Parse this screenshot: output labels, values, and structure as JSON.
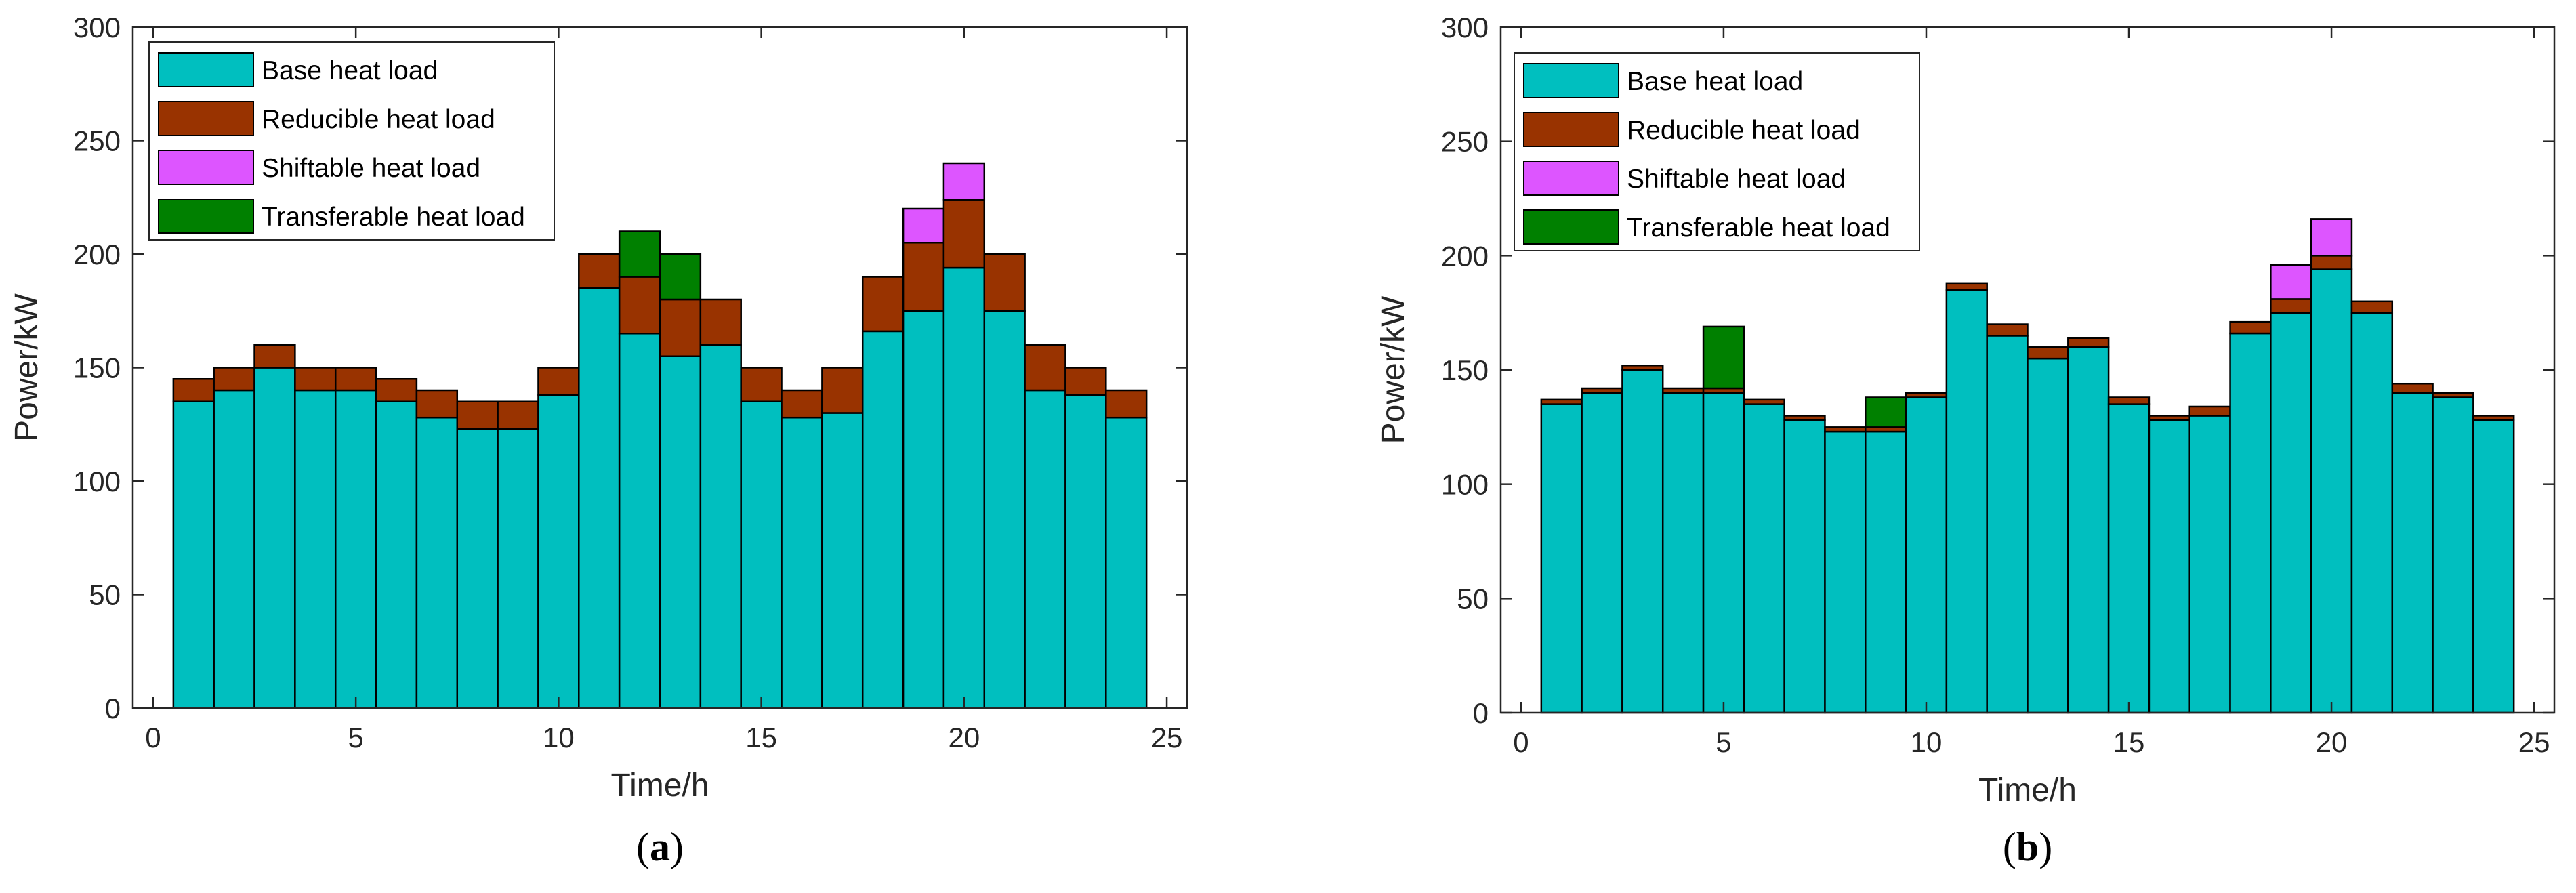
{
  "colors": {
    "base": "#00BFBF",
    "reducible": "#993300",
    "shiftable": "#DD55FF",
    "transferable": "#008000",
    "stroke": "#000000",
    "axis": "#262626"
  },
  "legend_labels": {
    "base": "Base heat load",
    "reducible": "Reducible heat load",
    "shiftable": "Shiftable heat load",
    "transferable": "Transferable heat load"
  },
  "chart_data": [
    {
      "type": "bar",
      "stacked": true,
      "panel": "a",
      "caption": "a",
      "xlabel": "Time/h",
      "ylabel": "Power/kW",
      "xlim": [
        -0.5,
        25.5
      ],
      "ylim": [
        0,
        300
      ],
      "xticks": [
        0,
        5,
        10,
        15,
        20,
        25
      ],
      "yticks": [
        0,
        50,
        100,
        150,
        200,
        250,
        300
      ],
      "legend_position": "top-left",
      "grid": false,
      "x": [
        1,
        2,
        3,
        4,
        5,
        6,
        7,
        8,
        9,
        10,
        11,
        12,
        13,
        14,
        15,
        16,
        17,
        18,
        19,
        20,
        21,
        22,
        23,
        24
      ],
      "series": [
        {
          "key": "base",
          "name": "Base heat load",
          "values": [
            135,
            140,
            150,
            140,
            140,
            135,
            128,
            123,
            123,
            138,
            185,
            165,
            155,
            160,
            135,
            128,
            130,
            166,
            175,
            194,
            175,
            140,
            138,
            128
          ]
        },
        {
          "key": "reducible",
          "name": "Reducible heat load",
          "values": [
            10,
            10,
            10,
            10,
            10,
            10,
            12,
            12,
            12,
            12,
            15,
            25,
            25,
            20,
            15,
            12,
            20,
            24,
            30,
            30,
            25,
            20,
            12,
            12
          ]
        },
        {
          "key": "shiftable",
          "name": "Shiftable heat load",
          "values": [
            0,
            0,
            0,
            0,
            0,
            0,
            0,
            0,
            0,
            0,
            0,
            0,
            0,
            0,
            0,
            0,
            0,
            0,
            15,
            16,
            0,
            0,
            0,
            0
          ]
        },
        {
          "key": "transferable",
          "name": "Transferable heat load",
          "values": [
            0,
            0,
            0,
            0,
            0,
            0,
            0,
            0,
            0,
            0,
            0,
            20,
            20,
            0,
            0,
            0,
            0,
            0,
            0,
            0,
            0,
            0,
            0,
            0
          ]
        }
      ]
    },
    {
      "type": "bar",
      "stacked": true,
      "panel": "b",
      "caption": "b",
      "xlabel": "Time/h",
      "ylabel": "Power/kW",
      "xlim": [
        -0.5,
        25.5
      ],
      "ylim": [
        0,
        300
      ],
      "xticks": [
        0,
        5,
        10,
        15,
        20,
        25
      ],
      "yticks": [
        0,
        50,
        100,
        150,
        200,
        250,
        300
      ],
      "legend_position": "top-left",
      "grid": false,
      "x": [
        1,
        2,
        3,
        4,
        5,
        6,
        7,
        8,
        9,
        10,
        11,
        12,
        13,
        14,
        15,
        16,
        17,
        18,
        19,
        20,
        21,
        22,
        23,
        24
      ],
      "series": [
        {
          "key": "base",
          "name": "Base heat load",
          "values": [
            135,
            140,
            150,
            140,
            140,
            135,
            128,
            123,
            123,
            138,
            185,
            165,
            155,
            160,
            135,
            128,
            130,
            166,
            175,
            194,
            175,
            140,
            138,
            128
          ]
        },
        {
          "key": "reducible",
          "name": "Reducible heat load",
          "values": [
            2,
            2,
            2,
            2,
            2,
            2,
            2,
            2,
            2,
            2,
            3,
            5,
            5,
            4,
            3,
            2,
            4,
            5,
            6,
            6,
            5,
            4,
            2,
            2
          ]
        },
        {
          "key": "shiftable",
          "name": "Shiftable heat load",
          "values": [
            0,
            0,
            0,
            0,
            0,
            0,
            0,
            0,
            0,
            0,
            0,
            0,
            0,
            0,
            0,
            0,
            0,
            0,
            15,
            16,
            0,
            0,
            0,
            0
          ]
        },
        {
          "key": "transferable",
          "name": "Transferable heat load",
          "values": [
            0,
            0,
            0,
            0,
            27,
            0,
            0,
            0,
            13,
            0,
            0,
            0,
            0,
            0,
            0,
            0,
            0,
            0,
            0,
            0,
            0,
            0,
            0,
            0
          ]
        }
      ]
    }
  ]
}
